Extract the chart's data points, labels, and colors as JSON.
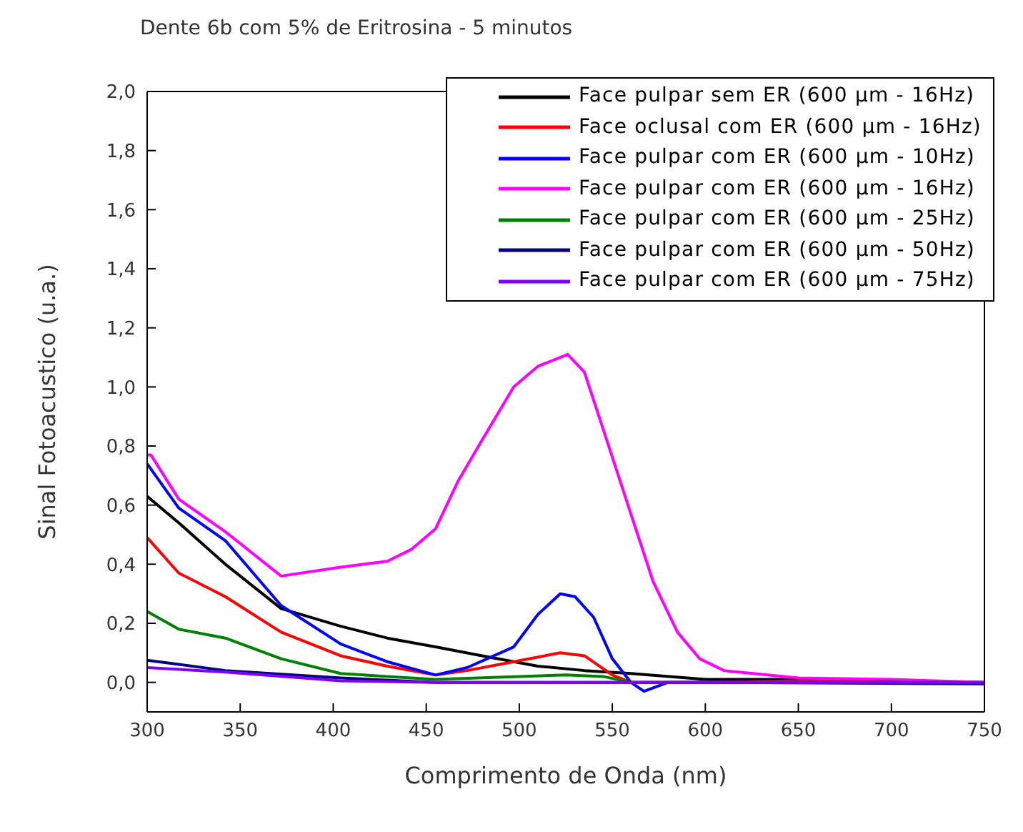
{
  "chart_data": {
    "type": "line",
    "title": "Dente 6b com 5% de Eritrosina - 5 minutos",
    "xlabel": "Comprimento de Onda (nm)",
    "ylabel": "Sinal Fotoacustico (u.a.)",
    "xlim": [
      300,
      750
    ],
    "xticks": [
      300,
      350,
      400,
      450,
      500,
      550,
      600,
      650,
      700,
      750
    ],
    "ylim": [
      -0.1,
      2.0
    ],
    "yticks": [
      {
        "value": 0,
        "label": "0,0"
      },
      {
        "value": 0.2,
        "label": "0,2"
      },
      {
        "value": 0.4,
        "label": "0,4"
      },
      {
        "value": 0.6,
        "label": "0,6"
      },
      {
        "value": 0.8,
        "label": "0,8"
      },
      {
        "value": 1,
        "label": "1,0"
      },
      {
        "value": 1.2,
        "label": "1,2"
      },
      {
        "value": 1.4,
        "label": "1,4"
      },
      {
        "value": 1.6,
        "label": "1,6"
      },
      {
        "value": 1.8,
        "label": "1,8"
      },
      {
        "value": 2,
        "label": "2,0"
      }
    ],
    "legend": "top right",
    "marker": "none",
    "line_style": "solid",
    "series": [
      {
        "name": "Face pulpar sem ER (600 µm - 16Hz)",
        "color": "#000000",
        "x": [
          300,
          317,
          342,
          372,
          404,
          429,
          455,
          480,
          510,
          535,
          560,
          600,
          650,
          700,
          750
        ],
        "values": [
          0.63,
          0.54,
          0.4,
          0.25,
          0.19,
          0.15,
          0.12,
          0.09,
          0.055,
          0.04,
          0.03,
          0.01,
          0.01,
          0.005,
          0.0
        ]
      },
      {
        "name": "Face oclusal com ER (600 µm - 16Hz)",
        "color": "#ff0000",
        "x": [
          300,
          317,
          342,
          372,
          404,
          429,
          455,
          472,
          497,
          522,
          535,
          550,
          560,
          600,
          650,
          700,
          750
        ],
        "values": [
          0.49,
          0.37,
          0.29,
          0.17,
          0.09,
          0.055,
          0.025,
          0.04,
          0.07,
          0.1,
          0.09,
          0.025,
          0.0,
          0.0,
          0.005,
          0.0,
          0.0
        ]
      },
      {
        "name": "Face pulpar com ER (600 µm - 10Hz)",
        "color": "#0000ff",
        "x": [
          300,
          317,
          342,
          372,
          404,
          429,
          455,
          472,
          497,
          510,
          522,
          530,
          540,
          550,
          560,
          567,
          580,
          650
        ],
        "values": [
          0.74,
          0.59,
          0.48,
          0.26,
          0.13,
          0.07,
          0.025,
          0.05,
          0.12,
          0.23,
          0.3,
          0.29,
          0.22,
          0.08,
          0.0,
          -0.03,
          0.0,
          0.0
        ]
      },
      {
        "name": "Face pulpar com ER (600 µm - 16Hz)",
        "color": "#ff00ff",
        "x": [
          300,
          302,
          317,
          342,
          372,
          404,
          429,
          442,
          455,
          467,
          480,
          497,
          510,
          526,
          535,
          547,
          560,
          572,
          585,
          597,
          610,
          650,
          700,
          750
        ],
        "values": [
          0.77,
          0.77,
          0.62,
          0.51,
          0.36,
          0.39,
          0.41,
          0.45,
          0.52,
          0.68,
          0.82,
          1.0,
          1.07,
          1.11,
          1.05,
          0.82,
          0.57,
          0.34,
          0.17,
          0.08,
          0.04,
          0.015,
          0.01,
          0.0
        ]
      },
      {
        "name": "Face pulpar com ER (600 µm - 25Hz)",
        "color": "#008000",
        "x": [
          300,
          317,
          342,
          372,
          404,
          429,
          455,
          500,
          525,
          545,
          560,
          650,
          750
        ],
        "values": [
          0.24,
          0.18,
          0.15,
          0.08,
          0.03,
          0.02,
          0.01,
          0.02,
          0.025,
          0.02,
          0.0,
          0.0,
          0.0
        ]
      },
      {
        "name": "Face pulpar com ER (600 µm - 50Hz)",
        "color": "#000080",
        "x": [
          300,
          342,
          404,
          455,
          600,
          750
        ],
        "values": [
          0.075,
          0.04,
          0.015,
          0.0,
          0.0,
          -0.005
        ]
      },
      {
        "name": "Face pulpar com ER (600 µm - 75Hz)",
        "color": "#8000ff",
        "x": [
          300,
          342,
          404,
          455,
          600,
          750
        ],
        "values": [
          0.05,
          0.035,
          0.005,
          0.0,
          0.0,
          0.0
        ]
      }
    ]
  }
}
